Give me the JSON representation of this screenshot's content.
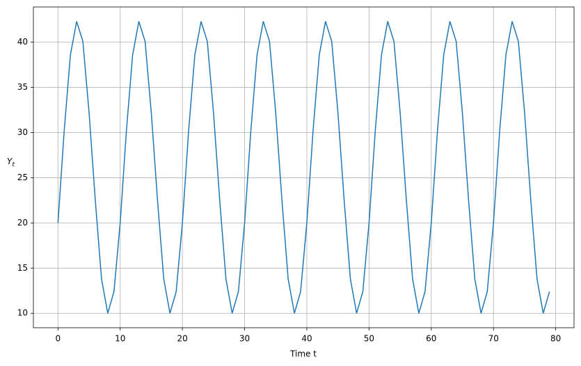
{
  "chart_data": {
    "type": "line",
    "xlabel": "Time t",
    "ylabel": {
      "text": "Y",
      "subscript": "t"
    },
    "x": [
      0,
      1,
      2,
      3,
      4,
      5,
      6,
      7,
      8,
      9,
      10,
      11,
      12,
      13,
      14,
      15,
      16,
      17,
      18,
      19,
      20,
      21,
      22,
      23,
      24,
      25,
      26,
      27,
      28,
      29,
      30,
      31,
      32,
      33,
      34,
      35,
      36,
      37,
      38,
      39,
      40,
      41,
      42,
      43,
      44,
      45,
      46,
      47,
      48,
      49,
      50,
      51,
      52,
      53,
      54,
      55,
      56,
      57,
      58,
      59,
      60,
      61,
      62,
      63,
      64,
      65,
      66,
      67,
      68,
      69,
      70,
      71,
      72,
      73,
      74,
      75,
      76,
      77,
      78,
      79
    ],
    "series": [
      {
        "name": "Y",
        "color": "#1f77b4",
        "values": [
          20,
          30.2,
          38.6,
          42.3,
          40.1,
          32.2,
          22.5,
          13.8,
          10,
          12.4,
          20,
          30.2,
          38.6,
          42.3,
          40.1,
          32.2,
          22.5,
          13.8,
          10,
          12.4,
          20,
          30.2,
          38.6,
          42.3,
          40.1,
          32.2,
          22.5,
          13.8,
          10,
          12.4,
          20,
          30.2,
          38.6,
          42.3,
          40.1,
          32.2,
          22.5,
          13.8,
          10,
          12.4,
          20,
          30.2,
          38.6,
          42.3,
          40.1,
          32.2,
          22.5,
          13.8,
          10,
          12.4,
          20,
          30.2,
          38.6,
          42.3,
          40.1,
          32.2,
          22.5,
          13.8,
          10,
          12.4,
          20,
          30.2,
          38.6,
          42.3,
          40.1,
          32.2,
          22.5,
          13.8,
          10,
          12.4,
          20,
          30.2,
          38.6,
          42.3,
          40.1,
          32.2,
          22.5,
          13.8,
          10,
          12.4
        ]
      }
    ],
    "xlim": [
      -3.95,
      82.95
    ],
    "ylim": [
      8.4,
      43.9
    ],
    "xticks": [
      0,
      10,
      20,
      30,
      40,
      50,
      60,
      70,
      80
    ],
    "yticks": [
      10,
      15,
      20,
      25,
      30,
      35,
      40
    ],
    "grid": true
  }
}
